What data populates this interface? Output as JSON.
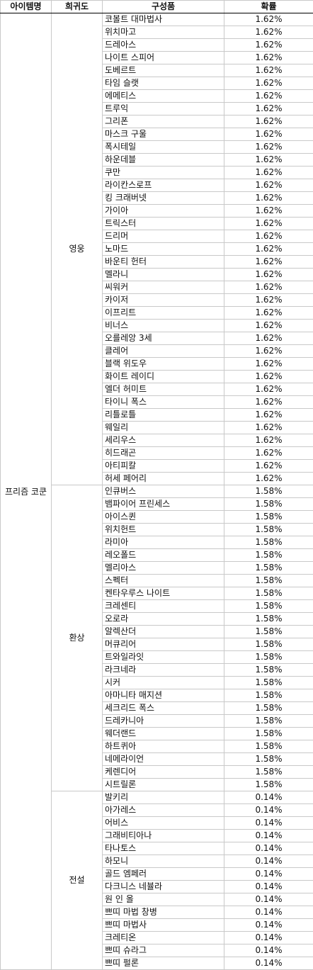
{
  "headers": [
    "아이템명",
    "희귀도",
    "구성품",
    "확률"
  ],
  "item_name": "프리즘 코쿤",
  "groups": [
    {
      "rarity": "영웅",
      "rows": [
        [
          "코볼트 대마법사",
          "1.62%"
        ],
        [
          "위치마고",
          "1.62%"
        ],
        [
          "드레아스",
          "1.62%"
        ],
        [
          "나이트 스피어",
          "1.62%"
        ],
        [
          "도베르트",
          "1.62%"
        ],
        [
          "타임 슬랫",
          "1.62%"
        ],
        [
          "에메티스",
          "1.62%"
        ],
        [
          "트루익",
          "1.62%"
        ],
        [
          "그리폰",
          "1.62%"
        ],
        [
          "마스크 구울",
          "1.62%"
        ],
        [
          "폭시테일",
          "1.62%"
        ],
        [
          "하운데블",
          "1.62%"
        ],
        [
          "쿠만",
          "1.62%"
        ],
        [
          "라이칸스로프",
          "1.62%"
        ],
        [
          "킹 크래버넷",
          "1.62%"
        ],
        [
          "가이아",
          "1.62%"
        ],
        [
          "트릭스터",
          "1.62%"
        ],
        [
          "드리머",
          "1.62%"
        ],
        [
          "노마드",
          "1.62%"
        ],
        [
          "바운티 헌터",
          "1.62%"
        ],
        [
          "멜라니",
          "1.62%"
        ],
        [
          "씨워커",
          "1.62%"
        ],
        [
          "카이저",
          "1.62%"
        ],
        [
          "이프리트",
          "1.62%"
        ],
        [
          "비너스",
          "1.62%"
        ],
        [
          "오를레앙 3세",
          "1.62%"
        ],
        [
          "클레어",
          "1.62%"
        ],
        [
          "블랙 위도우",
          "1.62%"
        ],
        [
          "화이트 레이디",
          "1.62%"
        ],
        [
          "엘더 허미트",
          "1.62%"
        ],
        [
          "타이니 폭스",
          "1.62%"
        ],
        [
          "리틀로틀",
          "1.62%"
        ],
        [
          "웨일리",
          "1.62%"
        ],
        [
          "세리우스",
          "1.62%"
        ],
        [
          "히드래곤",
          "1.62%"
        ],
        [
          "아티피칼",
          "1.62%"
        ],
        [
          "허세 페어리",
          "1.62%"
        ]
      ]
    },
    {
      "rarity": "환상",
      "rows": [
        [
          "인큐버스",
          "1.58%"
        ],
        [
          "뱀파이어 프린세스",
          "1.58%"
        ],
        [
          "아이스퀸",
          "1.58%"
        ],
        [
          "위치헌트",
          "1.58%"
        ],
        [
          "라미아",
          "1.58%"
        ],
        [
          "레오폴드",
          "1.58%"
        ],
        [
          "멜리아스",
          "1.58%"
        ],
        [
          "스펙터",
          "1.58%"
        ],
        [
          "켄타우루스 나이트",
          "1.58%"
        ],
        [
          "크레센티",
          "1.58%"
        ],
        [
          "오로라",
          "1.58%"
        ],
        [
          "알렉산더",
          "1.58%"
        ],
        [
          "머큐리어",
          "1.58%"
        ],
        [
          "트와일라잇",
          "1.58%"
        ],
        [
          "라크네라",
          "1.58%"
        ],
        [
          "시커",
          "1.58%"
        ],
        [
          "아마니타 매지션",
          "1.58%"
        ],
        [
          "세크리드 폭스",
          "1.58%"
        ],
        [
          "드레카니아",
          "1.58%"
        ],
        [
          "웨더랜드",
          "1.58%"
        ],
        [
          "하트퀴아",
          "1.58%"
        ],
        [
          "네메라이언",
          "1.58%"
        ],
        [
          "케렌디어",
          "1.58%"
        ],
        [
          "시트릴론",
          "1.58%"
        ]
      ]
    },
    {
      "rarity": "전설",
      "rows": [
        [
          "발키리",
          "0.14%"
        ],
        [
          "아가레스",
          "0.14%"
        ],
        [
          "어비스",
          "0.14%"
        ],
        [
          "그래비티아나",
          "0.14%"
        ],
        [
          "타나토스",
          "0.14%"
        ],
        [
          "하모니",
          "0.14%"
        ],
        [
          "골드 엠페러",
          "0.14%"
        ],
        [
          "다크니스 네뷸라",
          "0.14%"
        ],
        [
          "원 인 올",
          "0.14%"
        ],
        [
          "쁘띠 마법 창병",
          "0.14%"
        ],
        [
          "쁘띠 마법사",
          "0.14%"
        ],
        [
          "크레티온",
          "0.14%"
        ],
        [
          "쁘띠 슈라그",
          "0.14%"
        ],
        [
          "쁘띠 펄론",
          "0.14%"
        ]
      ]
    }
  ]
}
